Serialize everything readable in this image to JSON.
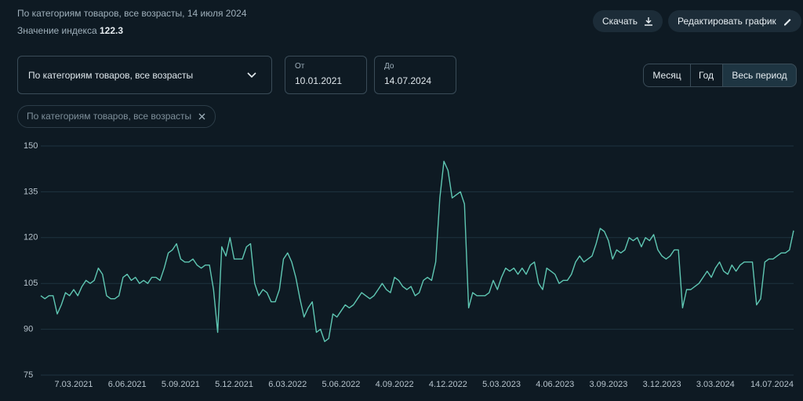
{
  "header": {
    "subtitle": "По категориям товаров, все возрасты, 14 июля 2024",
    "index_label": "Значение индекса",
    "index_value": "122.3"
  },
  "buttons": {
    "download": "Скачать",
    "edit": "Редактировать график"
  },
  "filters": {
    "dropdown": "По категориям товаров, все возрасты",
    "from_label": "От",
    "from_value": "10.01.2021",
    "to_label": "До",
    "to_value": "14.07.2024",
    "chip": "По категориям товаров, все возрасты"
  },
  "periods": [
    "Месяц",
    "Год",
    "Весь период"
  ],
  "chart_data": {
    "type": "line",
    "ylim": [
      75,
      150
    ],
    "yticks": [
      75,
      90,
      105,
      120,
      135,
      150
    ],
    "grid": true,
    "categories": [
      null,
      null,
      null,
      null,
      null,
      null,
      null,
      null,
      "7.03.2021",
      null,
      null,
      null,
      null,
      null,
      null,
      null,
      null,
      null,
      null,
      null,
      null,
      "6.06.2021",
      null,
      null,
      null,
      null,
      null,
      null,
      null,
      null,
      null,
      null,
      null,
      null,
      "5.09.2021",
      null,
      null,
      null,
      null,
      null,
      null,
      null,
      null,
      null,
      null,
      null,
      null,
      "5.12.2021",
      null,
      null,
      null,
      null,
      null,
      null,
      null,
      null,
      null,
      null,
      null,
      null,
      "6.03.2022",
      null,
      null,
      null,
      null,
      null,
      null,
      null,
      null,
      null,
      null,
      null,
      null,
      "5.06.2022",
      null,
      null,
      null,
      null,
      null,
      null,
      null,
      null,
      null,
      null,
      null,
      null,
      "4.09.2022",
      null,
      null,
      null,
      null,
      null,
      null,
      null,
      null,
      null,
      null,
      null,
      null,
      "4.12.2022",
      null,
      null,
      null,
      null,
      null,
      null,
      null,
      null,
      null,
      null,
      null,
      null,
      "5.03.2023",
      null,
      null,
      null,
      null,
      null,
      null,
      null,
      null,
      null,
      null,
      null,
      null,
      "4.06.2023",
      null,
      null,
      null,
      null,
      null,
      null,
      null,
      null,
      null,
      null,
      null,
      null,
      "3.09.2023",
      null,
      null,
      null,
      null,
      null,
      null,
      null,
      null,
      null,
      null,
      null,
      null,
      "3.12.2023",
      null,
      null,
      null,
      null,
      null,
      null,
      null,
      null,
      null,
      null,
      null,
      null,
      "3.03.2024",
      null,
      null,
      null,
      null,
      null,
      null,
      null,
      null,
      null,
      null,
      null,
      null,
      null,
      null,
      null,
      null,
      null,
      null,
      "14.07.2024"
    ],
    "series": [
      {
        "color": "#5fc7b3",
        "values": [
          101,
          100,
          101,
          101,
          95,
          98,
          102,
          101,
          103,
          101,
          104,
          106,
          105,
          106,
          110,
          108,
          101,
          100,
          100,
          101,
          107,
          108,
          106,
          107,
          105,
          106,
          105,
          107,
          107,
          106,
          110,
          115,
          116,
          118,
          113,
          112,
          112,
          113,
          111,
          110,
          111,
          111,
          103,
          89,
          117,
          114,
          120,
          113,
          113,
          113,
          117,
          118,
          105,
          101,
          103,
          102,
          99,
          99,
          103,
          113,
          115,
          112,
          107,
          100,
          94,
          97,
          99,
          89,
          90,
          86,
          87,
          95,
          94,
          96,
          98,
          97,
          98,
          100,
          102,
          101,
          100,
          101,
          103,
          105,
          103,
          102,
          107,
          106,
          104,
          103,
          104,
          101,
          102,
          106,
          107,
          106,
          112,
          133,
          145,
          142,
          133,
          134,
          135,
          131,
          97,
          102,
          101,
          101,
          101,
          102,
          106,
          103,
          107,
          110,
          109,
          110,
          108,
          110,
          108,
          111,
          112,
          105,
          103,
          110,
          109,
          108,
          105,
          106,
          106,
          108,
          112,
          114,
          112,
          113,
          114,
          118,
          123,
          122,
          119,
          113,
          116,
          115,
          116,
          120,
          119,
          120,
          117,
          120,
          119,
          121,
          116,
          114,
          113,
          114,
          116,
          116,
          97,
          103,
          103,
          104,
          105,
          107,
          109,
          107,
          110,
          112,
          109,
          108,
          111,
          109,
          111,
          112,
          112,
          112,
          98,
          100,
          112,
          113,
          113,
          114,
          115,
          115,
          116,
          122.3
        ]
      }
    ]
  }
}
